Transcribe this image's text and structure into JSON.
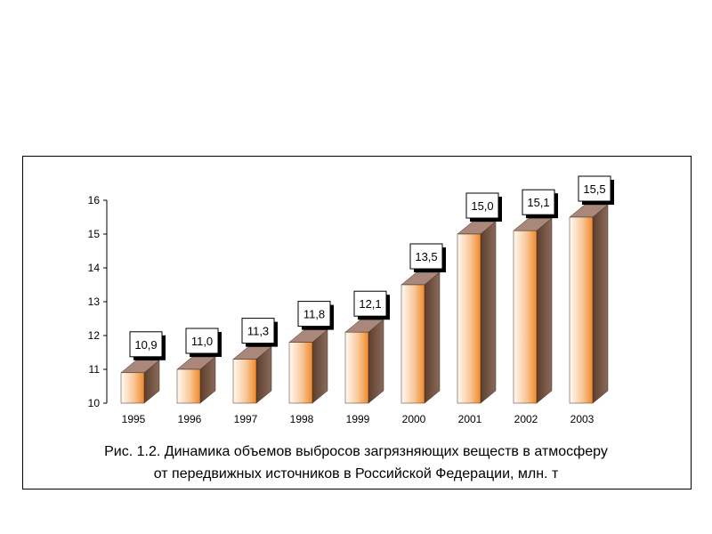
{
  "chart_data": {
    "type": "bar",
    "categories": [
      "1995",
      "1996",
      "1997",
      "1998",
      "1999",
      "2000",
      "2001",
      "2002",
      "2003"
    ],
    "values": [
      10.9,
      11.0,
      11.3,
      11.8,
      12.1,
      13.5,
      15.0,
      15.1,
      15.5
    ],
    "value_labels": [
      "10,9",
      "11,0",
      "11,3",
      "11,8",
      "12,1",
      "13,5",
      "15,0",
      "15,1",
      "15,5"
    ],
    "ylim": [
      10,
      16
    ],
    "yticks": [
      "10",
      "11",
      "12",
      "13",
      "14",
      "15",
      "16"
    ],
    "caption_lines": [
      "Рис. 1.2. Динамика объемов выбросов загрязняющих веществ в атмосферу",
      "от передвижных источников в Российской Федерации, млн. т"
    ],
    "grid": false,
    "colors": {
      "bar_front_light": "#fffaf2",
      "bar_front_dark": "#f08a2a",
      "bar_side": "#6e4d3a",
      "bar_top": "#a9877a"
    }
  }
}
